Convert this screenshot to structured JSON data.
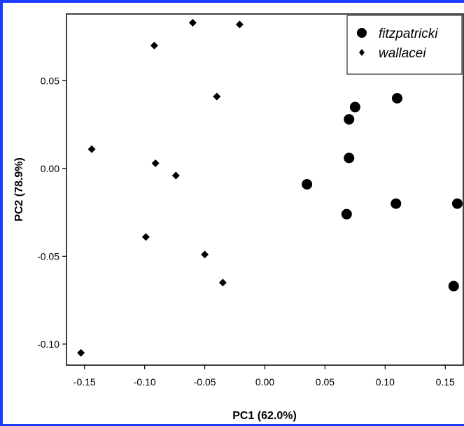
{
  "chart_data": {
    "type": "scatter",
    "title": "",
    "xlabel": "PC1 (62.0%)",
    "ylabel": "PC2 (78.9%)",
    "xlim": [
      -0.165,
      0.165
    ],
    "ylim": [
      -0.112,
      0.088
    ],
    "xticks": [
      -0.15,
      -0.1,
      -0.05,
      0.0,
      0.05,
      0.1,
      0.15
    ],
    "xtick_labels": [
      "-0.15",
      "-0.10",
      "-0.05",
      "0.00",
      "0.05",
      "0.10",
      "0.15"
    ],
    "yticks": [
      -0.1,
      -0.05,
      0.0,
      0.05
    ],
    "ytick_labels": [
      "-0.10",
      "-0.05",
      "0.00",
      "0.05"
    ],
    "grid": false,
    "legend_position": "top-right",
    "series": [
      {
        "name": "fitzpatricki",
        "marker": "circle",
        "color": "#000000",
        "points": [
          [
            0.035,
            -0.009
          ],
          [
            0.068,
            -0.026
          ],
          [
            0.07,
            0.006
          ],
          [
            0.07,
            0.028
          ],
          [
            0.075,
            0.035
          ],
          [
            0.109,
            -0.02
          ],
          [
            0.11,
            0.04
          ],
          [
            0.157,
            -0.067
          ],
          [
            0.16,
            -0.02
          ]
        ]
      },
      {
        "name": "wallacei",
        "marker": "diamond",
        "color": "#000000",
        "points": [
          [
            -0.153,
            -0.105
          ],
          [
            -0.144,
            0.011
          ],
          [
            -0.099,
            -0.039
          ],
          [
            -0.092,
            0.07
          ],
          [
            -0.091,
            0.003
          ],
          [
            -0.074,
            -0.004
          ],
          [
            -0.06,
            0.083
          ],
          [
            -0.05,
            -0.049
          ],
          [
            -0.04,
            0.041
          ],
          [
            -0.035,
            -0.065
          ],
          [
            -0.021,
            0.082
          ]
        ]
      }
    ]
  }
}
